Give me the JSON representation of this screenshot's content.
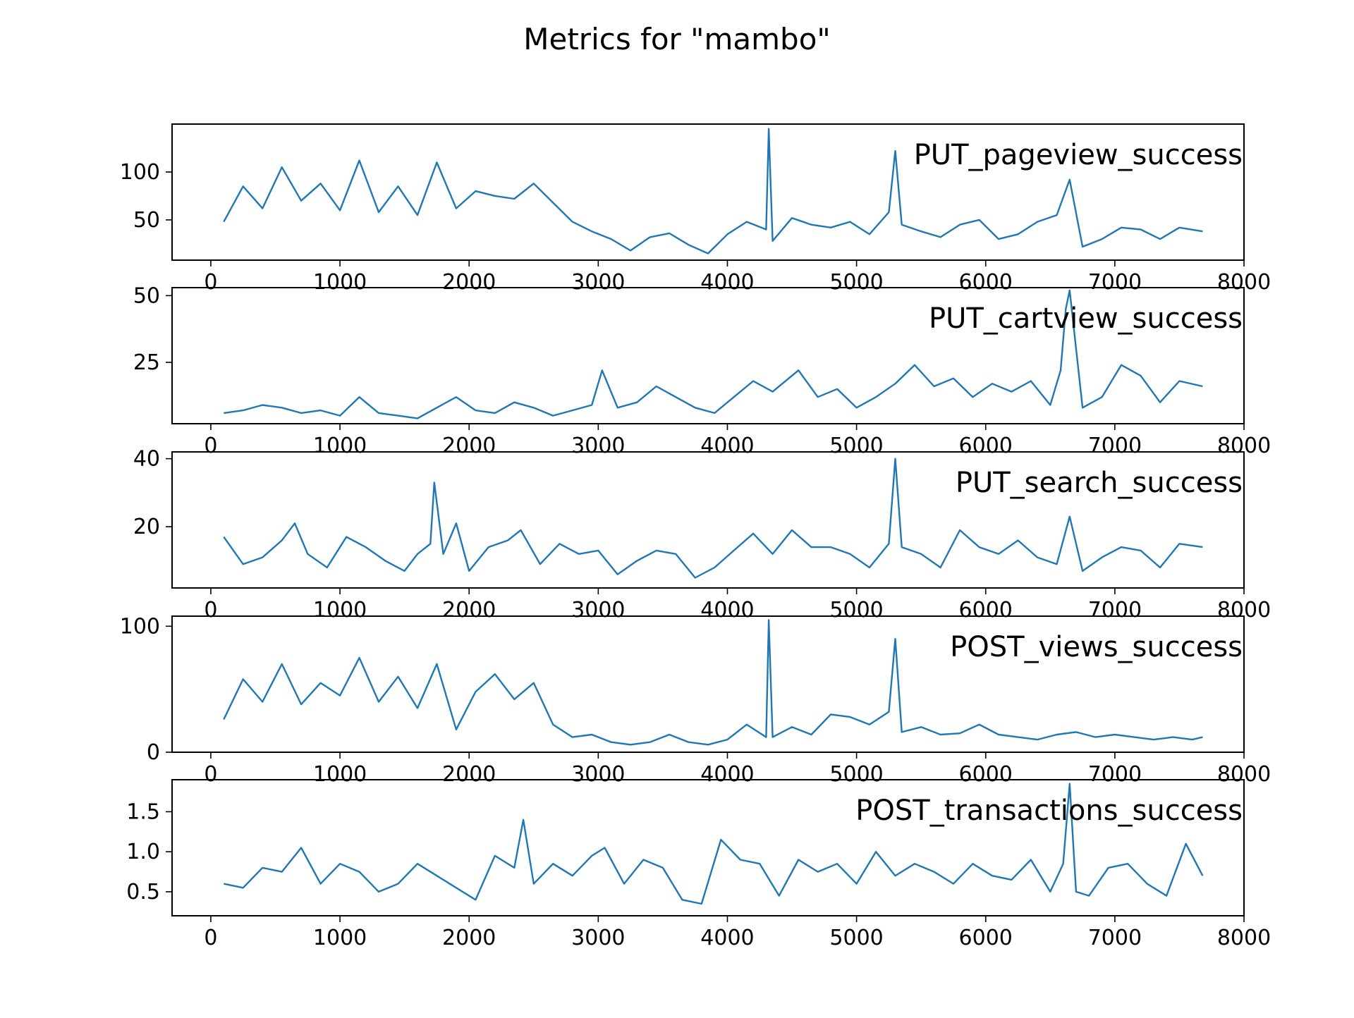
{
  "figure_title": "Metrics for \"mambo\"",
  "colors": {
    "line": "#1f77b4",
    "axis": "#000000",
    "background": "#ffffff"
  },
  "chart_data": [
    {
      "type": "line",
      "series": [
        {
          "name": "PUT_pageview_success",
          "x": [
            100,
            250,
            400,
            550,
            700,
            850,
            1000,
            1150,
            1300,
            1450,
            1600,
            1750,
            1900,
            2050,
            2200,
            2350,
            2500,
            2650,
            2800,
            2950,
            3100,
            3250,
            3400,
            3550,
            3700,
            3850,
            4000,
            4150,
            4300,
            4320,
            4350,
            4500,
            4650,
            4800,
            4950,
            5100,
            5250,
            5300,
            5350,
            5500,
            5650,
            5800,
            5950,
            6100,
            6250,
            6400,
            6550,
            6650,
            6750,
            6900,
            7050,
            7200,
            7350,
            7500,
            7680
          ],
          "values": [
            48,
            85,
            62,
            105,
            70,
            88,
            60,
            112,
            58,
            85,
            55,
            110,
            62,
            80,
            75,
            72,
            88,
            68,
            48,
            38,
            30,
            18,
            32,
            36,
            24,
            15,
            35,
            48,
            40,
            145,
            28,
            52,
            45,
            42,
            48,
            35,
            58,
            122,
            45,
            38,
            32,
            45,
            50,
            30,
            35,
            48,
            55,
            92,
            22,
            30,
            42,
            40,
            30,
            42,
            38
          ]
        }
      ],
      "xlim": [
        -300,
        8000
      ],
      "ylim": [
        8,
        150
      ],
      "xticks": [
        0,
        1000,
        2000,
        3000,
        4000,
        5000,
        6000,
        7000,
        8000
      ],
      "yticks": [
        50,
        100
      ]
    },
    {
      "type": "line",
      "series": [
        {
          "name": "PUT_cartview_success",
          "x": [
            100,
            250,
            400,
            550,
            700,
            850,
            1000,
            1150,
            1300,
            1450,
            1600,
            1750,
            1900,
            2050,
            2200,
            2350,
            2500,
            2650,
            2800,
            2950,
            3030,
            3150,
            3300,
            3450,
            3600,
            3750,
            3900,
            4050,
            4200,
            4350,
            4550,
            4700,
            4850,
            5000,
            5150,
            5300,
            5450,
            5600,
            5750,
            5900,
            6050,
            6200,
            6350,
            6500,
            6580,
            6620,
            6650,
            6750,
            6900,
            7050,
            7200,
            7350,
            7500,
            7680
          ],
          "values": [
            6,
            7,
            9,
            8,
            6,
            7,
            5,
            12,
            6,
            5,
            4,
            8,
            12,
            7,
            6,
            10,
            8,
            5,
            7,
            9,
            22,
            8,
            10,
            16,
            12,
            8,
            6,
            12,
            18,
            14,
            22,
            12,
            15,
            8,
            12,
            17,
            24,
            16,
            19,
            12,
            17,
            14,
            18,
            9,
            22,
            45,
            52,
            8,
            12,
            24,
            20,
            10,
            18,
            16
          ]
        }
      ],
      "xlim": [
        -300,
        8000
      ],
      "ylim": [
        2,
        53
      ],
      "xticks": [
        0,
        1000,
        2000,
        3000,
        4000,
        5000,
        6000,
        7000,
        8000
      ],
      "yticks": [
        25,
        50
      ]
    },
    {
      "type": "line",
      "series": [
        {
          "name": "PUT_search_success",
          "x": [
            100,
            250,
            400,
            550,
            650,
            750,
            900,
            1050,
            1200,
            1350,
            1500,
            1600,
            1700,
            1730,
            1800,
            1900,
            2000,
            2150,
            2300,
            2400,
            2550,
            2700,
            2850,
            3000,
            3150,
            3300,
            3450,
            3600,
            3750,
            3900,
            4050,
            4200,
            4350,
            4500,
            4650,
            4800,
            4950,
            5100,
            5250,
            5300,
            5350,
            5500,
            5650,
            5800,
            5950,
            6100,
            6250,
            6400,
            6550,
            6650,
            6750,
            6900,
            7050,
            7200,
            7350,
            7500,
            7680
          ],
          "values": [
            17,
            9,
            11,
            16,
            21,
            12,
            8,
            17,
            14,
            10,
            7,
            12,
            15,
            33,
            12,
            21,
            7,
            14,
            16,
            19,
            9,
            15,
            12,
            13,
            6,
            10,
            13,
            12,
            5,
            8,
            13,
            18,
            12,
            19,
            14,
            14,
            12,
            8,
            15,
            40,
            14,
            12,
            8,
            19,
            14,
            12,
            16,
            11,
            9,
            23,
            7,
            11,
            14,
            13,
            8,
            15,
            14
          ]
        }
      ],
      "xlim": [
        -300,
        8000
      ],
      "ylim": [
        2,
        42
      ],
      "xticks": [
        0,
        1000,
        2000,
        3000,
        4000,
        5000,
        6000,
        7000,
        8000
      ],
      "yticks": [
        20,
        40
      ]
    },
    {
      "type": "line",
      "series": [
        {
          "name": "POST_views_success",
          "x": [
            100,
            250,
            400,
            550,
            700,
            850,
            1000,
            1150,
            1300,
            1450,
            1600,
            1750,
            1900,
            2050,
            2200,
            2350,
            2500,
            2650,
            2800,
            2950,
            3100,
            3250,
            3400,
            3550,
            3700,
            3850,
            4000,
            4150,
            4300,
            4320,
            4350,
            4500,
            4650,
            4800,
            4950,
            5100,
            5250,
            5300,
            5350,
            5500,
            5650,
            5800,
            5950,
            6100,
            6250,
            6400,
            6550,
            6700,
            6850,
            7000,
            7150,
            7300,
            7450,
            7600,
            7680
          ],
          "values": [
            26,
            58,
            40,
            70,
            38,
            55,
            45,
            75,
            40,
            60,
            35,
            70,
            18,
            48,
            62,
            42,
            55,
            22,
            12,
            14,
            8,
            6,
            8,
            14,
            8,
            6,
            10,
            22,
            12,
            105,
            12,
            20,
            14,
            30,
            28,
            22,
            32,
            90,
            16,
            20,
            14,
            15,
            22,
            14,
            12,
            10,
            14,
            16,
            12,
            14,
            12,
            10,
            12,
            10,
            12
          ]
        }
      ],
      "xlim": [
        -300,
        8000
      ],
      "ylim": [
        0,
        108
      ],
      "xticks": [
        0,
        1000,
        2000,
        3000,
        4000,
        5000,
        6000,
        7000,
        8000
      ],
      "yticks": [
        0,
        100
      ]
    },
    {
      "type": "line",
      "series": [
        {
          "name": "POST_transactions_success",
          "x": [
            100,
            250,
            400,
            550,
            700,
            850,
            1000,
            1150,
            1300,
            1450,
            1600,
            1750,
            1900,
            2050,
            2200,
            2350,
            2420,
            2500,
            2650,
            2800,
            2950,
            3050,
            3200,
            3350,
            3500,
            3650,
            3800,
            3950,
            4100,
            4250,
            4400,
            4550,
            4700,
            4850,
            5000,
            5150,
            5300,
            5450,
            5600,
            5750,
            5900,
            6050,
            6200,
            6350,
            6500,
            6600,
            6650,
            6700,
            6800,
            6950,
            7100,
            7250,
            7400,
            7550,
            7680
          ],
          "values": [
            0.6,
            0.55,
            0.8,
            0.75,
            1.05,
            0.6,
            0.85,
            0.75,
            0.5,
            0.6,
            0.85,
            0.7,
            0.55,
            0.4,
            0.95,
            0.8,
            1.4,
            0.6,
            0.85,
            0.7,
            0.95,
            1.05,
            0.6,
            0.9,
            0.8,
            0.4,
            0.35,
            1.15,
            0.9,
            0.85,
            0.45,
            0.9,
            0.75,
            0.85,
            0.6,
            1.0,
            0.7,
            0.85,
            0.75,
            0.6,
            0.85,
            0.7,
            0.65,
            0.9,
            0.5,
            0.85,
            1.85,
            0.5,
            0.45,
            0.8,
            0.85,
            0.6,
            0.45,
            1.1,
            0.7
          ]
        }
      ],
      "xlim": [
        -300,
        8000
      ],
      "ylim": [
        0.2,
        1.9
      ],
      "xticks": [
        0,
        1000,
        2000,
        3000,
        4000,
        5000,
        6000,
        7000,
        8000
      ],
      "yticks": [
        0.5,
        1.0,
        1.5
      ]
    }
  ]
}
